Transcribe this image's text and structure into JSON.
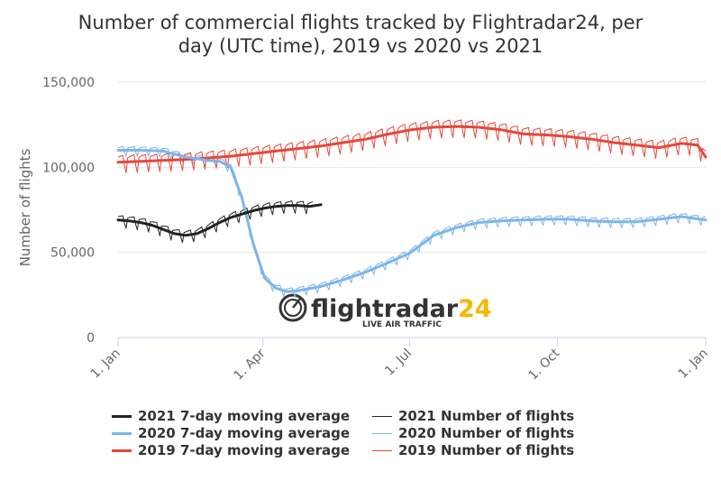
{
  "chart_data": {
    "type": "line",
    "title": "Number of commercial flights tracked by Flightradar24, per day (UTC time), 2019 vs 2020 vs 2021",
    "title_lines": [
      "Number of commercial flights tracked by Flightradar24, per",
      "day (UTC time), 2019 vs 2020 vs 2021"
    ],
    "xlabel": "",
    "ylabel": "Number of flights",
    "ylim": [
      0,
      150000
    ],
    "yticks": [
      0,
      50000,
      100000,
      150000
    ],
    "ytick_labels": [
      "0",
      "50,000",
      "100,000",
      "150,000"
    ],
    "x_unit": "day of year",
    "xlim": [
      1,
      366
    ],
    "xticks": [
      1,
      91,
      182,
      274,
      366
    ],
    "xtick_labels": [
      "1. Jan",
      "1. Apr",
      "1. Jul",
      "1. Oct",
      "1. Jan"
    ],
    "grid": "horizontal",
    "legend_position": "bottom",
    "series": [
      {
        "name": "2021 7-day moving average",
        "color": "#222222",
        "style": "thick",
        "x": [
          1,
          8,
          15,
          22,
          29,
          36,
          43,
          50,
          57,
          64,
          71,
          78,
          85,
          92,
          99,
          106,
          113,
          120,
          127
        ],
        "y": [
          69000,
          68500,
          67500,
          66000,
          63500,
          61000,
          60000,
          61000,
          64000,
          67500,
          70500,
          72500,
          74500,
          76000,
          77000,
          77500,
          77500,
          77000,
          78000
        ]
      },
      {
        "name": "2020 7-day moving average",
        "color": "#7cb5ec",
        "style": "thick",
        "x": [
          1,
          15,
          29,
          43,
          57,
          64,
          71,
          78,
          85,
          92,
          99,
          106,
          113,
          127,
          141,
          155,
          169,
          183,
          197,
          211,
          225,
          239,
          253,
          267,
          281,
          295,
          309,
          323,
          337,
          351,
          366
        ],
        "y": [
          110000,
          110000,
          109500,
          106000,
          104000,
          103500,
          100000,
          82000,
          55000,
          35000,
          29000,
          27000,
          27500,
          30000,
          34000,
          38500,
          44000,
          50000,
          60000,
          64500,
          67500,
          68500,
          69000,
          69500,
          69500,
          68500,
          68000,
          68000,
          69500,
          71000,
          69000
        ]
      },
      {
        "name": "2019 7-day moving average",
        "color": "#e8463a",
        "style": "thick",
        "x": [
          1,
          15,
          29,
          43,
          57,
          71,
          85,
          99,
          113,
          127,
          141,
          155,
          169,
          183,
          197,
          211,
          225,
          239,
          253,
          267,
          281,
          295,
          309,
          323,
          337,
          351,
          361,
          366
        ],
        "y": [
          103000,
          103500,
          104000,
          104500,
          105500,
          106500,
          108000,
          109500,
          111000,
          112500,
          114500,
          116500,
          119500,
          122000,
          123500,
          124000,
          123500,
          122000,
          119500,
          119000,
          118000,
          116500,
          114500,
          113000,
          111500,
          114000,
          113000,
          106000
        ]
      },
      {
        "name": "2021 Number of flights",
        "color": "#222222",
        "style": "thin",
        "base_series": 0,
        "weekly_amplitude": 4500,
        "x_end": 122
      },
      {
        "name": "2020 Number of flights",
        "color": "#7cb5ec",
        "style": "thin",
        "base_series": 1,
        "weekly_amplitude": 3500,
        "x_end": 366
      },
      {
        "name": "2019 Number of flights",
        "color": "#e8463a",
        "style": "thin",
        "base_series": 2,
        "weekly_amplitude": 6500,
        "x_end": 366
      }
    ],
    "watermark": {
      "brand": "flightradar24",
      "tagline": "LIVE AIR TRAFFIC"
    }
  }
}
